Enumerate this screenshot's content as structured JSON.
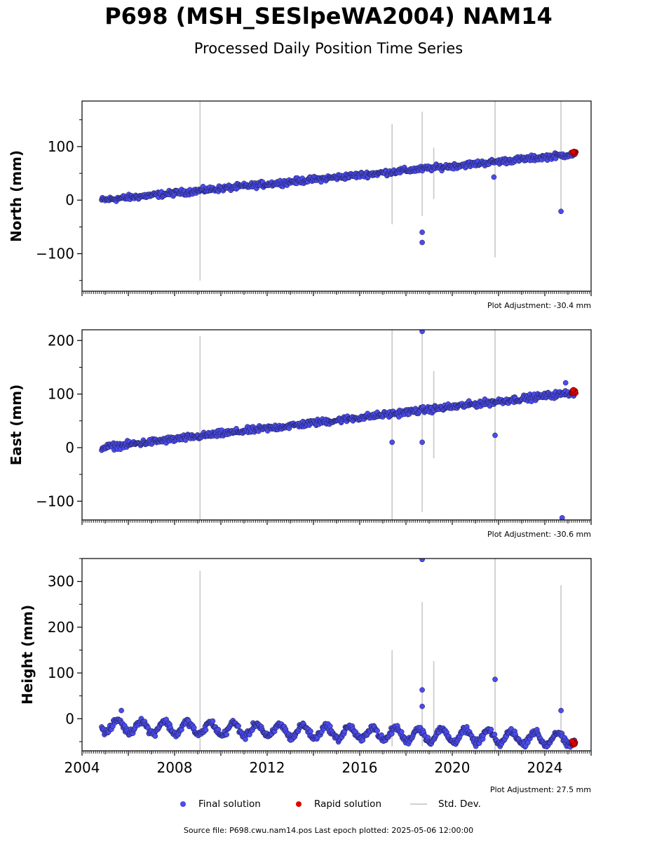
{
  "title": "P698 (MSH_SESlpeWA2004) NAM14",
  "subtitle": "Processed Daily Position Time Series",
  "legend": {
    "final": "Final solution",
    "rapid": "Rapid solution",
    "stddev": "Std. Dev."
  },
  "colors": {
    "final": "#4b4bf0",
    "rapid": "#e00000",
    "stddev": "#c8c8c8"
  },
  "footer": "Source file: P698.cwu.nam14.pos  Last epoch plotted: 2025-05-06 12:00:00",
  "chart_data": [
    {
      "type": "scatter",
      "ylabel": "North (mm)",
      "adjustment": "Plot Adjustment: -30.4 mm",
      "xlim": [
        2004.0,
        2026.0
      ],
      "ylim": [
        -170,
        185
      ],
      "yticks": [
        -100,
        0,
        100
      ],
      "trend": {
        "x": [
          2004.85,
          2025.3
        ],
        "y": [
          0,
          86
        ]
      },
      "noise": 4.5,
      "seasonal": 0,
      "outliers": [
        {
          "x": 2018.7,
          "y": -60
        },
        {
          "x": 2018.7,
          "y": -79
        },
        {
          "x": 2021.8,
          "y": 43
        },
        {
          "x": 2024.7,
          "y": -21
        }
      ],
      "stddev_bars": [
        {
          "x": 2009.1,
          "lo": -150,
          "hi": 185
        },
        {
          "x": 2017.4,
          "lo": -45,
          "hi": 142
        },
        {
          "x": 2018.7,
          "lo": -30,
          "hi": 165
        },
        {
          "x": 2019.2,
          "lo": 2,
          "hi": 98
        },
        {
          "x": 2021.85,
          "lo": -107,
          "hi": 185
        },
        {
          "x": 2024.7,
          "lo": -20,
          "hi": 185
        }
      ],
      "rapid": {
        "x": [
          2025.15,
          2025.35
        ],
        "y": [
          86,
          91
        ]
      }
    },
    {
      "type": "scatter",
      "ylabel": "East (mm)",
      "adjustment": "Plot Adjustment: -30.6 mm",
      "xlim": [
        2004.0,
        2026.0
      ],
      "ylim": [
        -135,
        220
      ],
      "yticks": [
        -100,
        0,
        100,
        200
      ],
      "trend": {
        "x": [
          2004.85,
          2025.3
        ],
        "y": [
          0,
          103
        ]
      },
      "noise": 5,
      "seasonal": 0,
      "outliers": [
        {
          "x": 2017.4,
          "y": 10
        },
        {
          "x": 2018.7,
          "y": 10
        },
        {
          "x": 2018.7,
          "y": 217
        },
        {
          "x": 2021.85,
          "y": 23
        },
        {
          "x": 2024.9,
          "y": 121
        },
        {
          "x": 2024.75,
          "y": -131
        }
      ],
      "stddev_bars": [
        {
          "x": 2009.1,
          "lo": -135,
          "hi": 208
        },
        {
          "x": 2017.4,
          "lo": -135,
          "hi": 220
        },
        {
          "x": 2018.7,
          "lo": -120,
          "hi": 220
        },
        {
          "x": 2019.2,
          "lo": -20,
          "hi": 143
        },
        {
          "x": 2021.85,
          "lo": -135,
          "hi": 220
        }
      ],
      "rapid": {
        "x": [
          2025.15,
          2025.35
        ],
        "y": [
          101,
          108
        ]
      }
    },
    {
      "type": "scatter",
      "ylabel": "Height (mm)",
      "adjustment": "Plot Adjustment: 27.5 mm",
      "xlim": [
        2004.0,
        2026.0
      ],
      "ylim": [
        -70,
        350
      ],
      "yticks": [
        0,
        100,
        200,
        300
      ],
      "xticks": [
        2004,
        2008,
        2012,
        2016,
        2020,
        2024
      ],
      "trend": {
        "x": [
          2004.85,
          2025.3
        ],
        "y": [
          -15,
          -45
        ]
      },
      "noise": 6,
      "seasonal": 14,
      "outliers": [
        {
          "x": 2005.7,
          "y": 18
        },
        {
          "x": 2018.7,
          "y": 348
        },
        {
          "x": 2018.7,
          "y": 63
        },
        {
          "x": 2018.7,
          "y": 27
        },
        {
          "x": 2021.85,
          "y": 86
        },
        {
          "x": 2024.7,
          "y": 18
        }
      ],
      "stddev_bars": [
        {
          "x": 2009.1,
          "lo": -70,
          "hi": 323
        },
        {
          "x": 2017.4,
          "lo": -60,
          "hi": 150
        },
        {
          "x": 2018.7,
          "lo": -60,
          "hi": 255
        },
        {
          "x": 2019.2,
          "lo": -50,
          "hi": 126
        },
        {
          "x": 2021.85,
          "lo": -70,
          "hi": 350
        },
        {
          "x": 2024.7,
          "lo": -50,
          "hi": 292
        }
      ],
      "rapid": {
        "x": [
          2025.15,
          2025.35
        ],
        "y": [
          -58,
          -48
        ]
      }
    }
  ]
}
